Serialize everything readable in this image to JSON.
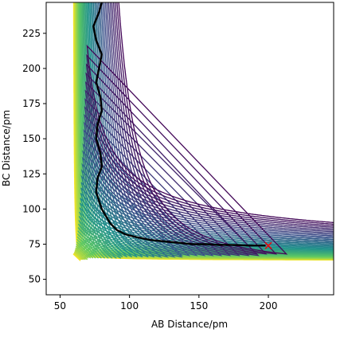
{
  "chart_data": {
    "type": "contour",
    "title": "",
    "xlabel": "AB Distance/pm",
    "ylabel": "BC Distance/pm",
    "xlim": [
      40,
      247
    ],
    "ylim": [
      39,
      247
    ],
    "xticks": [
      50,
      100,
      150,
      200
    ],
    "yticks": [
      50,
      75,
      100,
      125,
      150,
      175,
      200,
      225
    ],
    "grid": false,
    "colormap": [
      "#440154",
      "#3b528b",
      "#21918c",
      "#5ec962",
      "#fde725"
    ],
    "contour_levels": 44,
    "trajectory": {
      "color": "#000000",
      "points": [
        [
          80,
          247
        ],
        [
          78,
          240
        ],
        [
          74,
          230
        ],
        [
          76,
          220
        ],
        [
          80,
          210
        ],
        [
          78,
          200
        ],
        [
          76,
          190
        ],
        [
          79,
          180
        ],
        [
          80,
          170
        ],
        [
          77,
          160
        ],
        [
          76,
          150
        ],
        [
          79,
          140
        ],
        [
          80,
          130
        ],
        [
          77,
          122
        ],
        [
          76,
          112
        ],
        [
          80,
          100
        ],
        [
          86,
          90
        ],
        [
          91,
          85
        ],
        [
          97,
          82
        ],
        [
          105,
          80
        ],
        [
          115,
          78
        ],
        [
          125,
          77
        ],
        [
          135,
          76
        ],
        [
          145,
          75
        ],
        [
          155,
          75
        ],
        [
          165,
          74.5
        ],
        [
          175,
          74.5
        ],
        [
          185,
          74
        ],
        [
          192,
          74
        ],
        [
          198,
          74
        ]
      ]
    },
    "end_marker": {
      "x": 200,
      "y": 74,
      "color": "#ff0000",
      "symbol": "x"
    }
  }
}
